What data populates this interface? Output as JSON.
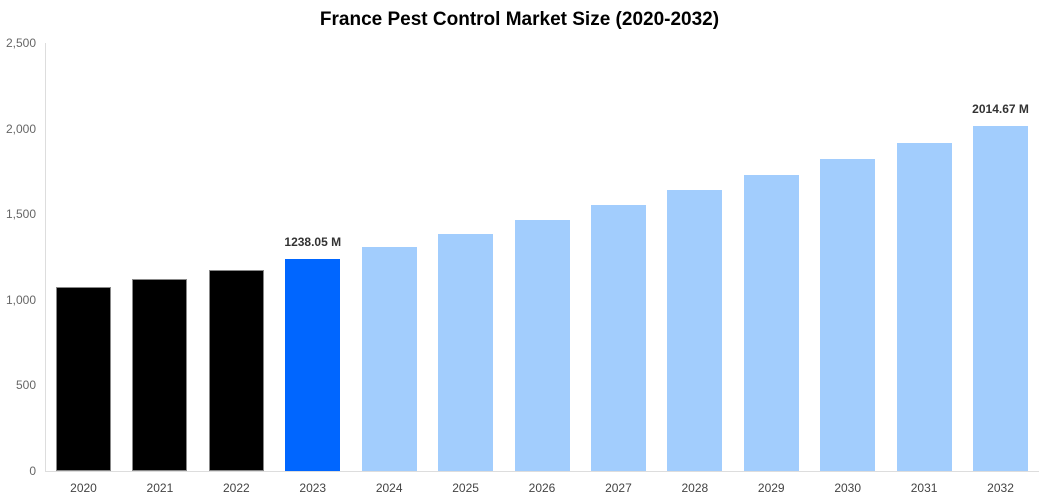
{
  "chart_data": {
    "type": "bar",
    "title": "France Pest Control Market Size (2020-2032)",
    "xlabel": "",
    "ylabel": "",
    "ylim": [
      0,
      2500
    ],
    "yticks": [
      0,
      500,
      1000,
      1500,
      2000,
      2500
    ],
    "ytick_labels": [
      "0",
      "500",
      "1,000",
      "1,500",
      "2,000",
      "2,500"
    ],
    "grid": false,
    "legend": null,
    "categories": [
      "2020",
      "2021",
      "2022",
      "2023",
      "2024",
      "2025",
      "2026",
      "2027",
      "2028",
      "2029",
      "2030",
      "2031",
      "2032"
    ],
    "values": [
      1075,
      1121,
      1174,
      1238.05,
      1308,
      1384,
      1466,
      1554,
      1641,
      1729,
      1822,
      1916,
      2014.67
    ],
    "bar_colors": [
      "#000000",
      "#000000",
      "#000000",
      "#0066ff",
      "#a2cdfd",
      "#a2cdfd",
      "#a2cdfd",
      "#a2cdfd",
      "#a2cdfd",
      "#a2cdfd",
      "#a2cdfd",
      "#a2cdfd",
      "#a2cdfd"
    ],
    "annotations": [
      {
        "category": "2023",
        "text": "1238.05 M"
      },
      {
        "category": "2032",
        "text": "2014.67 M"
      }
    ]
  }
}
